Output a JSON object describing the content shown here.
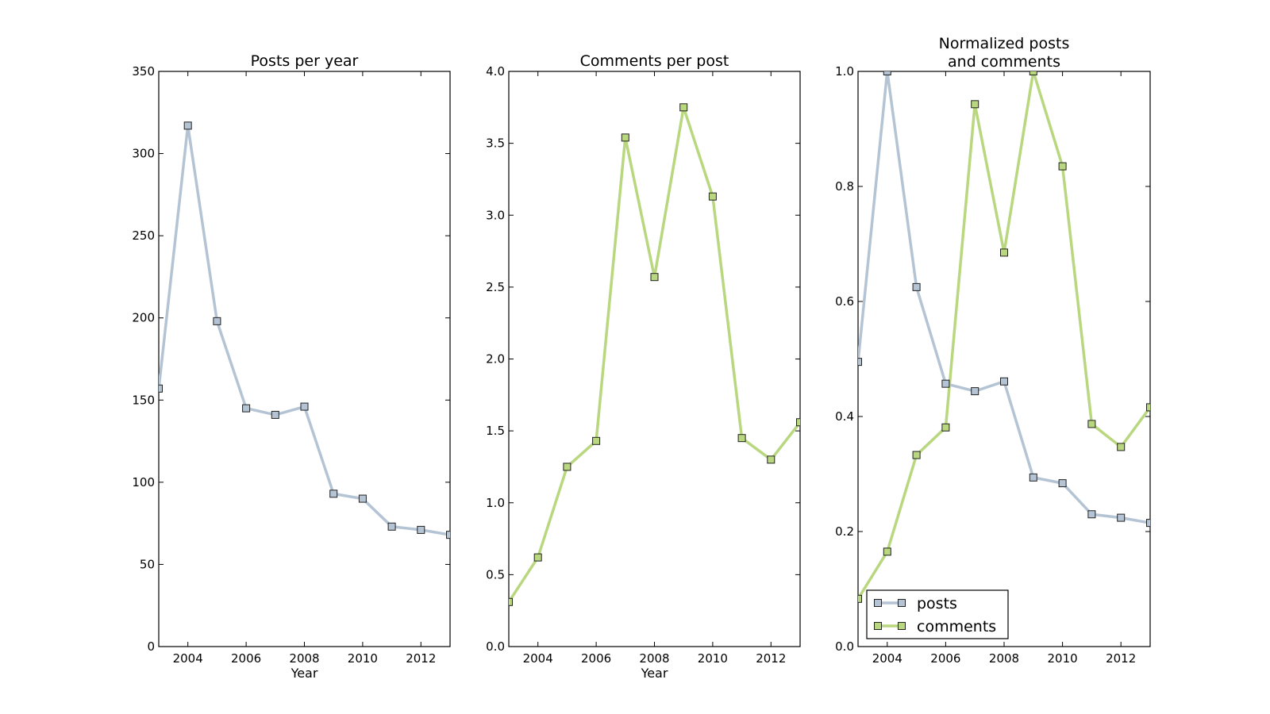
{
  "colors": {
    "posts": "#b4c4d4",
    "comments": "#b8d77e",
    "marker_edge": "#222222",
    "axes": "#000000"
  },
  "chart_data": [
    {
      "type": "line",
      "title": "Posts per year",
      "xlabel": "Year",
      "ylabel": "",
      "xlim": [
        2003,
        2013
      ],
      "ylim": [
        0,
        350
      ],
      "xticks": [
        2004,
        2006,
        2008,
        2010,
        2012
      ],
      "yticks": [
        0,
        50,
        100,
        150,
        200,
        250,
        300,
        350
      ],
      "ytick_labels": [
        "0",
        "50",
        "100",
        "150",
        "200",
        "250",
        "300",
        "350"
      ],
      "grid": false,
      "x": [
        2003,
        2004,
        2005,
        2006,
        2007,
        2008,
        2009,
        2010,
        2011,
        2012,
        2013
      ],
      "series": [
        {
          "key": "posts",
          "values": [
            157,
            317,
            198,
            145,
            141,
            146,
            93,
            90,
            73,
            71,
            68
          ]
        }
      ]
    },
    {
      "type": "line",
      "title": "Comments per post",
      "xlabel": "Year",
      "ylabel": "",
      "xlim": [
        2003,
        2013
      ],
      "ylim": [
        0,
        4
      ],
      "xticks": [
        2004,
        2006,
        2008,
        2010,
        2012
      ],
      "yticks": [
        0,
        0.5,
        1,
        1.5,
        2,
        2.5,
        3,
        3.5,
        4
      ],
      "ytick_labels": [
        "0.0",
        "0.5",
        "1.0",
        "1.5",
        "2.0",
        "2.5",
        "3.0",
        "3.5",
        "4.0"
      ],
      "grid": false,
      "x": [
        2003,
        2004,
        2005,
        2006,
        2007,
        2008,
        2009,
        2010,
        2011,
        2012,
        2013
      ],
      "series": [
        {
          "key": "comments",
          "values": [
            0.31,
            0.62,
            1.25,
            1.43,
            3.54,
            2.57,
            3.75,
            3.13,
            1.45,
            1.3,
            1.56
          ]
        }
      ]
    },
    {
      "type": "line",
      "title": "Normalized posts\nand comments",
      "title_lines": [
        "Normalized posts",
        "and comments"
      ],
      "xlabel": "",
      "ylabel": "",
      "xlim": [
        2003,
        2013
      ],
      "ylim": [
        0,
        1
      ],
      "xticks": [
        2004,
        2006,
        2008,
        2010,
        2012
      ],
      "yticks": [
        0,
        0.2,
        0.4,
        0.6,
        0.8,
        1
      ],
      "ytick_labels": [
        "0.0",
        "0.2",
        "0.4",
        "0.6",
        "0.8",
        "1.0"
      ],
      "grid": false,
      "legend": "lower-left",
      "x": [
        2003,
        2004,
        2005,
        2006,
        2007,
        2008,
        2009,
        2010,
        2011,
        2012,
        2013
      ],
      "series": [
        {
          "name": "posts",
          "key": "posts",
          "values": [
            0.495,
            1.0,
            0.625,
            0.457,
            0.444,
            0.461,
            0.294,
            0.284,
            0.23,
            0.224,
            0.215
          ]
        },
        {
          "name": "comments",
          "key": "comments",
          "values": [
            0.083,
            0.165,
            0.333,
            0.381,
            0.943,
            0.685,
            1.0,
            0.835,
            0.387,
            0.347,
            0.416
          ]
        }
      ]
    }
  ]
}
